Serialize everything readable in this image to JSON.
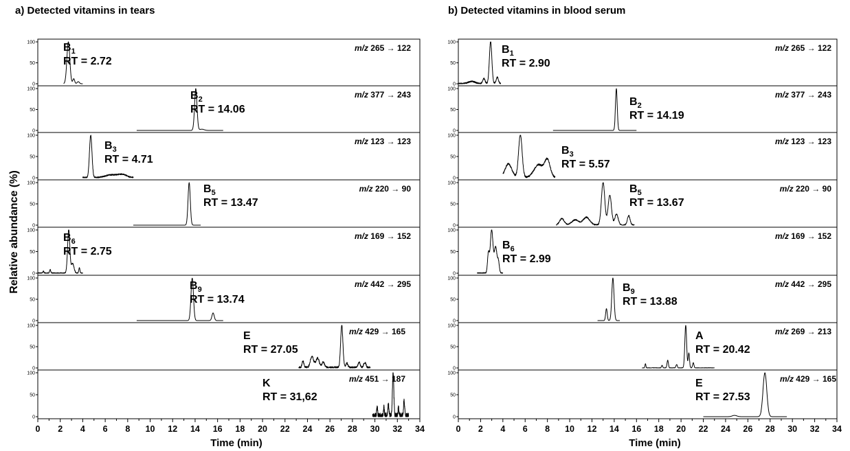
{
  "chart_data": [
    {
      "type": "line",
      "title": "a) Detected vitamins in tears",
      "xlabel": "Time (min)",
      "ylabel": "Relative abundance (%)",
      "xlim": [
        0,
        34
      ],
      "xticks": [
        "0",
        "2",
        "4",
        "6",
        "8",
        "10",
        "12",
        "14",
        "16",
        "18",
        "20",
        "22",
        "24",
        "26",
        "28",
        "30",
        "32",
        "34"
      ],
      "ylim": [
        0,
        100
      ],
      "yticks": [
        "0",
        "50",
        "100"
      ],
      "panels": [
        {
          "vitamin": "B",
          "sub": "1",
          "rt_text": "RT = 2.72",
          "mz_prefix": "m/z",
          "mz_text": "265 → 122",
          "peaks": [
            {
              "x": 2.72,
              "y": 100,
              "w": 0.13
            },
            {
              "x": 3.2,
              "y": 12,
              "w": 0.08
            },
            {
              "x": 3.6,
              "y": 5,
              "w": 0.1
            }
          ],
          "range": [
            2.3,
            4.0
          ],
          "noise": 0
        },
        {
          "vitamin": "B",
          "sub": "2",
          "rt_text": "RT = 14.06",
          "mz_prefix": "m/z",
          "mz_text": "377 → 243",
          "peaks": [
            {
              "x": 14.06,
              "y": 100,
              "w": 0.11
            },
            {
              "x": 14.6,
              "y": 3,
              "w": 0.2
            }
          ],
          "range": [
            8.8,
            16.5
          ],
          "noise": 0
        },
        {
          "vitamin": "B",
          "sub": "3",
          "rt_text": "RT = 4.71",
          "mz_prefix": "m/z",
          "mz_text": "123 → 123",
          "peaks": [
            {
              "x": 4.71,
              "y": 100,
              "w": 0.11
            },
            {
              "x": 6.5,
              "y": 6,
              "w": 0.5
            },
            {
              "x": 7.5,
              "y": 7,
              "w": 0.4
            }
          ],
          "range": [
            4.0,
            8.5
          ],
          "noise": 3
        },
        {
          "vitamin": "B",
          "sub": "5",
          "rt_text": "RT = 13.47",
          "mz_prefix": "m/z",
          "mz_text": "220 → 90",
          "peaks": [
            {
              "x": 13.47,
              "y": 100,
              "w": 0.1
            }
          ],
          "range": [
            8.5,
            14.5
          ],
          "noise": 0
        },
        {
          "vitamin": "B",
          "sub": "6",
          "rt_text": "RT = 2.75",
          "mz_prefix": "m/z",
          "mz_text": "169 → 152",
          "peaks": [
            {
              "x": 2.75,
              "y": 100,
              "w": 0.1
            },
            {
              "x": 3.1,
              "y": 22,
              "w": 0.12
            },
            {
              "x": 3.7,
              "y": 12,
              "w": 0.05
            },
            {
              "x": 1.1,
              "y": 8,
              "w": 0.05
            },
            {
              "x": 0.5,
              "y": 4,
              "w": 0.05
            }
          ],
          "range": [
            0,
            4.0
          ],
          "noise": 2
        },
        {
          "vitamin": "B",
          "sub": "9",
          "rt_text": "RT = 13.74",
          "mz_prefix": "m/z",
          "mz_text": "442 → 295",
          "peaks": [
            {
              "x": 13.74,
              "y": 100,
              "w": 0.11
            },
            {
              "x": 15.6,
              "y": 18,
              "w": 0.1
            }
          ],
          "range": [
            8.8,
            16.5
          ],
          "noise": 0
        },
        {
          "vitamin": "E",
          "sub": "",
          "rt_text": "RT = 27.05",
          "mz_prefix": "m/z",
          "mz_text": "429 → 165",
          "peaks": [
            {
              "x": 27.05,
              "y": 100,
              "w": 0.1
            },
            {
              "x": 24.4,
              "y": 25,
              "w": 0.15
            },
            {
              "x": 24.9,
              "y": 22,
              "w": 0.15
            },
            {
              "x": 25.4,
              "y": 12,
              "w": 0.12
            },
            {
              "x": 23.6,
              "y": 15,
              "w": 0.08
            },
            {
              "x": 27.5,
              "y": 10,
              "w": 0.1
            },
            {
              "x": 28.6,
              "y": 12,
              "w": 0.1
            },
            {
              "x": 29.1,
              "y": 12,
              "w": 0.1
            }
          ],
          "range": [
            23.2,
            29.6
          ],
          "noise": 5
        },
        {
          "vitamin": "K",
          "sub": "",
          "rt_text": "RT = 31,62",
          "mz_prefix": "m/z",
          "mz_text": "451 → 187",
          "peaks": [
            {
              "x": 31.62,
              "y": 100,
              "w": 0.06
            },
            {
              "x": 32.6,
              "y": 35,
              "w": 0.05
            },
            {
              "x": 31.2,
              "y": 25,
              "w": 0.05
            },
            {
              "x": 30.2,
              "y": 22,
              "w": 0.04
            },
            {
              "x": 30.8,
              "y": 20,
              "w": 0.04
            },
            {
              "x": 32.1,
              "y": 18,
              "w": 0.04
            }
          ],
          "range": [
            29.8,
            33.0
          ],
          "noise": 12
        }
      ]
    },
    {
      "type": "line",
      "title": "b) Detected vitamins in blood serum",
      "xlabel": "Time (min)",
      "ylabel": "",
      "xlim": [
        0,
        34
      ],
      "xticks": [
        "0",
        "2",
        "4",
        "6",
        "8",
        "10",
        "12",
        "14",
        "16",
        "18",
        "20",
        "22",
        "24",
        "26",
        "28",
        "30",
        "32",
        "34"
      ],
      "ylim": [
        0,
        100
      ],
      "yticks": [
        "0",
        "50",
        "100"
      ],
      "panels": [
        {
          "vitamin": "B",
          "sub": "1",
          "rt_text": "RT = 2.90",
          "mz_prefix": "m/z",
          "mz_text": "265 → 122",
          "peaks": [
            {
              "x": 2.9,
              "y": 100,
              "w": 0.11
            },
            {
              "x": 2.3,
              "y": 12,
              "w": 0.1
            },
            {
              "x": 3.5,
              "y": 15,
              "w": 0.1
            },
            {
              "x": 1.2,
              "y": 5,
              "w": 0.3
            }
          ],
          "range": [
            0,
            3.8
          ],
          "noise": 3
        },
        {
          "vitamin": "B",
          "sub": "2",
          "rt_text": "RT = 14.19",
          "mz_prefix": "m/z",
          "mz_text": "377 → 243",
          "peaks": [
            {
              "x": 14.19,
              "y": 100,
              "w": 0.08
            }
          ],
          "range": [
            8.5,
            16.0
          ],
          "noise": 0
        },
        {
          "vitamin": "B",
          "sub": "3",
          "rt_text": "RT = 5.57",
          "mz_prefix": "m/z",
          "mz_text": "123 → 123",
          "peaks": [
            {
              "x": 5.57,
              "y": 100,
              "w": 0.16
            },
            {
              "x": 8.0,
              "y": 40,
              "w": 0.25
            },
            {
              "x": 7.2,
              "y": 30,
              "w": 0.4
            },
            {
              "x": 4.5,
              "y": 32,
              "w": 0.3
            }
          ],
          "range": [
            4.0,
            8.7
          ],
          "noise": 4
        },
        {
          "vitamin": "B",
          "sub": "5",
          "rt_text": "RT = 13.67",
          "mz_prefix": "m/z",
          "mz_text": "220 → 90",
          "peaks": [
            {
              "x": 13.0,
              "y": 100,
              "w": 0.15
            },
            {
              "x": 13.6,
              "y": 70,
              "w": 0.15
            },
            {
              "x": 14.2,
              "y": 25,
              "w": 0.15
            },
            {
              "x": 15.3,
              "y": 22,
              "w": 0.12
            },
            {
              "x": 11.5,
              "y": 18,
              "w": 0.3
            },
            {
              "x": 9.3,
              "y": 15,
              "w": 0.2
            },
            {
              "x": 10.5,
              "y": 12,
              "w": 0.3
            }
          ],
          "range": [
            8.8,
            15.8
          ],
          "noise": 3
        },
        {
          "vitamin": "B",
          "sub": "6",
          "rt_text": "RT = 2.99",
          "mz_prefix": "m/z",
          "mz_text": "169 → 152",
          "peaks": [
            {
              "x": 2.99,
              "y": 100,
              "w": 0.12
            },
            {
              "x": 3.35,
              "y": 60,
              "w": 0.12
            },
            {
              "x": 2.7,
              "y": 45,
              "w": 0.08
            },
            {
              "x": 3.6,
              "y": 25,
              "w": 0.08
            }
          ],
          "range": [
            1.7,
            4.0
          ],
          "noise": 2
        },
        {
          "vitamin": "B",
          "sub": "9",
          "rt_text": "RT = 13.88",
          "mz_prefix": "m/z",
          "mz_text": "442 → 295",
          "peaks": [
            {
              "x": 13.88,
              "y": 100,
              "w": 0.1
            },
            {
              "x": 13.3,
              "y": 28,
              "w": 0.07
            }
          ],
          "range": [
            12.5,
            14.5
          ],
          "noise": 0
        },
        {
          "vitamin": "A",
          "sub": "",
          "rt_text": "RT = 20.42",
          "mz_prefix": "m/z",
          "mz_text": "269 → 213",
          "peaks": [
            {
              "x": 20.42,
              "y": 100,
              "w": 0.08
            },
            {
              "x": 20.7,
              "y": 35,
              "w": 0.06
            },
            {
              "x": 18.8,
              "y": 18,
              "w": 0.06
            },
            {
              "x": 16.8,
              "y": 10,
              "w": 0.04
            },
            {
              "x": 21.1,
              "y": 12,
              "w": 0.06
            },
            {
              "x": 19.6,
              "y": 8,
              "w": 0.06
            },
            {
              "x": 18.3,
              "y": 6,
              "w": 0.05
            }
          ],
          "range": [
            16.5,
            23.0
          ],
          "noise": 1
        },
        {
          "vitamin": "E",
          "sub": "",
          "rt_text": "RT = 27.53",
          "mz_prefix": "m/z",
          "mz_text": "429 → 165",
          "peaks": [
            {
              "x": 27.53,
              "y": 100,
              "w": 0.17
            },
            {
              "x": 24.8,
              "y": 3,
              "w": 0.2
            }
          ],
          "range": [
            22.0,
            29.5
          ],
          "noise": 0
        }
      ]
    }
  ]
}
